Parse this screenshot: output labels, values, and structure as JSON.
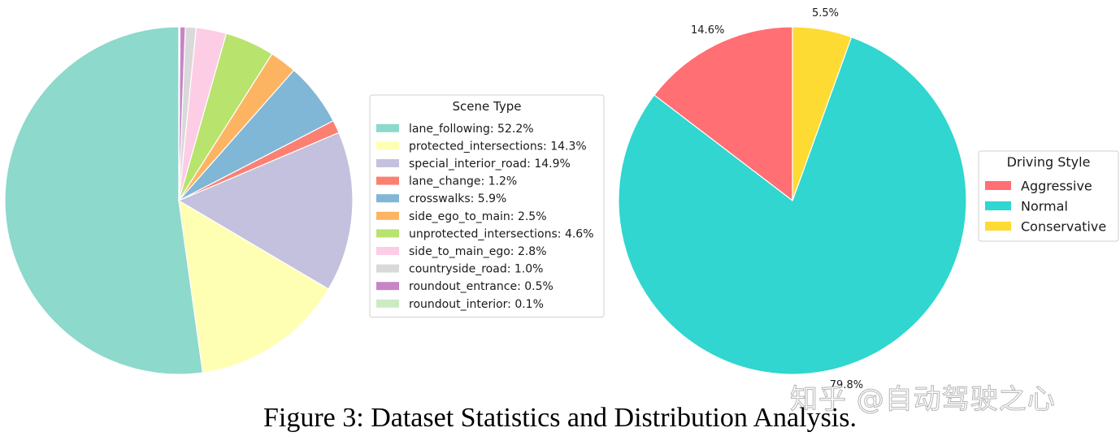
{
  "chart_data": [
    {
      "type": "pie",
      "legend_title": "Scene Type",
      "legend_position": "center-right",
      "start_angle_deg": 90,
      "direction": "counterclockwise",
      "slices": [
        {
          "label": "lane_following",
          "value": 52.2,
          "color": "#8dd9cc",
          "legend_text": "lane_following: 52.2%"
        },
        {
          "label": "protected_intersections",
          "value": 14.3,
          "color": "#ffffb3",
          "legend_text": "protected_intersections: 14.3%"
        },
        {
          "label": "special_interior_road",
          "value": 14.9,
          "color": "#c4c1de",
          "legend_text": "special_interior_road: 14.9%"
        },
        {
          "label": "lane_change",
          "value": 1.2,
          "color": "#fb8072",
          "legend_text": "lane_change: 1.2%"
        },
        {
          "label": "crosswalks",
          "value": 5.9,
          "color": "#80b6d6",
          "legend_text": "crosswalks: 5.9%"
        },
        {
          "label": "side_ego_to_main",
          "value": 2.5,
          "color": "#fdb462",
          "legend_text": "side_ego_to_main: 2.5%"
        },
        {
          "label": "unprotected_intersections",
          "value": 4.6,
          "color": "#b8e36c",
          "legend_text": "unprotected_intersections: 4.6%"
        },
        {
          "label": "side_to_main_ego",
          "value": 2.8,
          "color": "#fccde5",
          "legend_text": "side_to_main_ego: 2.8%"
        },
        {
          "label": "countryside_road",
          "value": 1.0,
          "color": "#d9d9d9",
          "legend_text": "countryside_road: 1.0%"
        },
        {
          "label": "roundout_entrance",
          "value": 0.5,
          "color": "#c785c7",
          "legend_text": "roundout_entrance: 0.5%"
        },
        {
          "label": "roundout_interior",
          "value": 0.1,
          "color": "#ccebc5",
          "legend_text": "roundout_interior: 0.1%"
        }
      ]
    },
    {
      "type": "pie",
      "legend_title": "Driving Style",
      "legend_position": "center-right",
      "start_angle_deg": 90,
      "direction": "counterclockwise",
      "slices": [
        {
          "label": "Aggressive",
          "value": 14.6,
          "color": "#ff6f73",
          "pct_label": "14.6%",
          "legend_text": "Aggressive"
        },
        {
          "label": "Normal",
          "value": 79.8,
          "color": "#30d6cf",
          "pct_label": "79.8%",
          "legend_text": "Normal"
        },
        {
          "label": "Conservative",
          "value": 5.5,
          "color": "#fddb33",
          "pct_label": "5.5%",
          "legend_text": "Conservative"
        }
      ]
    }
  ],
  "caption": "Figure 3: Dataset Statistics and Distribution Analysis.",
  "watermark": "知乎 @自动驾驶之心"
}
